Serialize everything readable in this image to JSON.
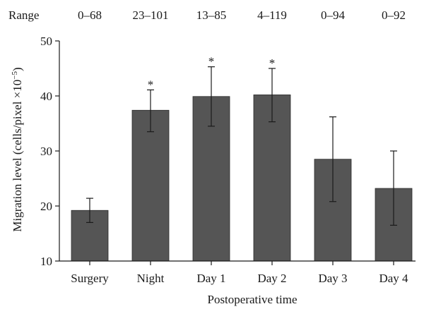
{
  "chart_data": {
    "type": "bar",
    "ylabel": "Migration level (cells/pixel ×10",
    "ylabel_exponent": "−5",
    "ylabel_close": ")",
    "xlabel": "Postoperative time",
    "ylim": [
      10,
      50
    ],
    "yticks": [
      10,
      20,
      30,
      40,
      50
    ],
    "grid": false,
    "categories": [
      "Surgery",
      "Night",
      "Day 1",
      "Day 2",
      "Day 3",
      "Day 4"
    ],
    "values": [
      19.2,
      37.4,
      39.9,
      40.2,
      28.5,
      23.2
    ],
    "error_low": [
      17.0,
      33.5,
      34.5,
      35.3,
      20.8,
      16.5
    ],
    "error_high": [
      21.4,
      41.1,
      45.3,
      45.0,
      36.2,
      30.0
    ],
    "significance": [
      "",
      "*",
      "*",
      "*",
      "",
      ""
    ],
    "range_label": "Range",
    "ranges": [
      "0–68",
      "23–101",
      "13–85",
      "4–119",
      "0–94",
      "0–92"
    ],
    "colors": {
      "bar": "#555555",
      "text": "#1a1a1a"
    }
  }
}
